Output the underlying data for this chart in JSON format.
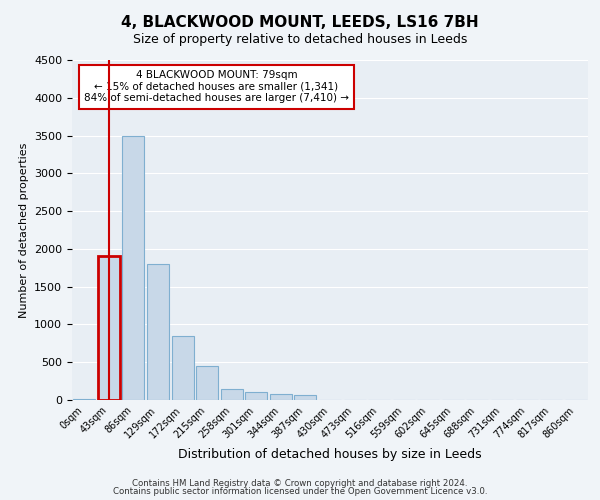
{
  "title1": "4, BLACKWOOD MOUNT, LEEDS, LS16 7BH",
  "title2": "Size of property relative to detached houses in Leeds",
  "xlabel": "Distribution of detached houses by size in Leeds",
  "ylabel": "Number of detached properties",
  "bin_labels": [
    "0sqm",
    "43sqm",
    "86sqm",
    "129sqm",
    "172sqm",
    "215sqm",
    "258sqm",
    "301sqm",
    "344sqm",
    "387sqm",
    "430sqm",
    "473sqm",
    "516sqm",
    "559sqm",
    "602sqm",
    "645sqm",
    "688sqm",
    "731sqm",
    "774sqm",
    "817sqm",
    "860sqm"
  ],
  "bar_values": [
    15,
    1900,
    3500,
    1800,
    850,
    450,
    150,
    100,
    80,
    65,
    0,
    0,
    0,
    0,
    0,
    0,
    0,
    0,
    0,
    0,
    0
  ],
  "bar_color": "#c8d8e8",
  "bar_edge_color": "#7fafd0",
  "highlight_bar_index": 1,
  "highlight_edge_color": "#cc0000",
  "annotation_line1": "4 BLACKWOOD MOUNT: 79sqm",
  "annotation_line2": "← 15% of detached houses are smaller (1,341)",
  "annotation_line3": "84% of semi-detached houses are larger (7,410) →",
  "annotation_box_color": "#ffffff",
  "annotation_box_edge": "#cc0000",
  "ylim": [
    0,
    4500
  ],
  "yticks": [
    0,
    500,
    1000,
    1500,
    2000,
    2500,
    3000,
    3500,
    4000,
    4500
  ],
  "footer1": "Contains HM Land Registry data © Crown copyright and database right 2024.",
  "footer2": "Contains public sector information licensed under the Open Government Licence v3.0.",
  "bg_color": "#f0f4f8",
  "plot_bg_color": "#e8eef4"
}
